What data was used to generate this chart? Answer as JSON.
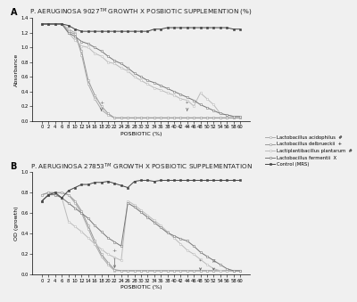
{
  "title_A": "P. AERUGINOSA 9027$^{TM}$ GROWTH X POSBIOTIC SUPPLEMENTION (%)",
  "title_B": "P. AERUGINOSA 27853$^{TM}$ GROWTH X POSBIOTIC SUPPLEMENTATION",
  "xlabel": "POSBIOTIC (%)",
  "ylabel_A": "Absorbance",
  "ylabel_B": "OD (growth)",
  "x_ticks": [
    0,
    2,
    4,
    6,
    8,
    10,
    12,
    14,
    16,
    18,
    20,
    22,
    24,
    26,
    28,
    30,
    32,
    34,
    36,
    38,
    40,
    42,
    44,
    46,
    48,
    50,
    52,
    54,
    56,
    58,
    60
  ],
  "legend_labels": [
    "Lactobacillus acidophilus  #",
    "Lactobacillus delbrueckii  +",
    "Lactiplantibacillus plantarum  #",
    "Lactobacillus fermentii  X",
    "Control (MRS)"
  ],
  "data_A": {
    "acidophilus": [
      1.32,
      1.32,
      1.32,
      1.32,
      1.25,
      1.2,
      0.9,
      0.5,
      0.3,
      0.15,
      0.08,
      0.04,
      0.04,
      0.04,
      0.04,
      0.04,
      0.04,
      0.04,
      0.04,
      0.04,
      0.04,
      0.04,
      0.04,
      0.04,
      0.04,
      0.04,
      0.04,
      0.04,
      0.04,
      0.04,
      0.04
    ],
    "delbrueckii": [
      1.32,
      1.32,
      1.32,
      1.32,
      1.22,
      1.18,
      0.95,
      0.55,
      0.35,
      0.2,
      0.1,
      0.04,
      0.04,
      0.04,
      0.04,
      0.04,
      0.04,
      0.04,
      0.04,
      0.04,
      0.04,
      0.04,
      0.04,
      0.04,
      0.04,
      0.04,
      0.04,
      0.04,
      0.04,
      0.04,
      0.04
    ],
    "plantarum": [
      1.32,
      1.32,
      1.32,
      1.32,
      1.2,
      1.1,
      1.02,
      1.0,
      0.92,
      0.88,
      0.8,
      0.78,
      0.72,
      0.68,
      0.6,
      0.55,
      0.5,
      0.45,
      0.42,
      0.38,
      0.35,
      0.3,
      0.28,
      0.2,
      0.38,
      0.3,
      0.22,
      0.1,
      0.08,
      0.06,
      0.06
    ],
    "fermentii": [
      1.32,
      1.32,
      1.32,
      1.32,
      1.2,
      1.15,
      1.08,
      1.05,
      1.0,
      0.95,
      0.88,
      0.82,
      0.78,
      0.72,
      0.65,
      0.6,
      0.55,
      0.52,
      0.48,
      0.44,
      0.4,
      0.36,
      0.32,
      0.28,
      0.22,
      0.18,
      0.14,
      0.1,
      0.08,
      0.06,
      0.06
    ],
    "control": [
      1.32,
      1.32,
      1.32,
      1.32,
      1.3,
      1.25,
      1.22,
      1.22,
      1.22,
      1.22,
      1.22,
      1.22,
      1.22,
      1.22,
      1.22,
      1.22,
      1.22,
      1.25,
      1.25,
      1.27,
      1.27,
      1.27,
      1.27,
      1.27,
      1.27,
      1.27,
      1.27,
      1.27,
      1.27,
      1.25,
      1.25
    ]
  },
  "data_B": {
    "acidophilus": [
      0.78,
      0.8,
      0.8,
      0.8,
      0.78,
      0.7,
      0.6,
      0.45,
      0.3,
      0.18,
      0.1,
      0.04,
      0.04,
      0.04,
      0.04,
      0.04,
      0.04,
      0.04,
      0.04,
      0.04,
      0.04,
      0.04,
      0.04,
      0.04,
      0.04,
      0.04,
      0.04,
      0.04,
      0.04,
      0.04,
      0.04
    ],
    "delbrueckii": [
      0.78,
      0.8,
      0.8,
      0.8,
      0.78,
      0.72,
      0.62,
      0.48,
      0.33,
      0.2,
      0.12,
      0.05,
      0.04,
      0.04,
      0.04,
      0.04,
      0.04,
      0.04,
      0.04,
      0.04,
      0.04,
      0.04,
      0.04,
      0.04,
      0.04,
      0.04,
      0.04,
      0.04,
      0.04,
      0.04,
      0.04
    ],
    "plantarum": [
      0.72,
      0.78,
      0.78,
      0.75,
      0.52,
      0.47,
      0.42,
      0.36,
      0.3,
      0.25,
      0.2,
      0.17,
      0.14,
      0.72,
      0.68,
      0.63,
      0.58,
      0.53,
      0.48,
      0.42,
      0.36,
      0.3,
      0.24,
      0.2,
      0.15,
      0.1,
      0.06,
      0.04,
      0.04,
      0.04,
      0.04
    ],
    "fermentii": [
      0.72,
      0.78,
      0.78,
      0.75,
      0.7,
      0.65,
      0.6,
      0.55,
      0.48,
      0.42,
      0.36,
      0.32,
      0.28,
      0.7,
      0.66,
      0.61,
      0.56,
      0.51,
      0.46,
      0.41,
      0.38,
      0.35,
      0.33,
      0.28,
      0.22,
      0.18,
      0.14,
      0.1,
      0.06,
      0.04,
      0.04
    ],
    "control": [
      0.72,
      0.78,
      0.8,
      0.75,
      0.82,
      0.85,
      0.88,
      0.88,
      0.9,
      0.9,
      0.91,
      0.89,
      0.87,
      0.85,
      0.91,
      0.92,
      0.92,
      0.91,
      0.92,
      0.92,
      0.92,
      0.92,
      0.92,
      0.92,
      0.92,
      0.92,
      0.92,
      0.92,
      0.92,
      0.92,
      0.92
    ]
  },
  "ylim_A": [
    0.0,
    1.4
  ],
  "ylim_B": [
    0.0,
    1.0
  ],
  "yticks_A": [
    0.0,
    0.2,
    0.4,
    0.6,
    0.8,
    1.0,
    1.2,
    1.4
  ],
  "yticks_B": [
    0.0,
    0.2,
    0.4,
    0.6,
    0.8,
    1.0
  ],
  "colors": [
    "#aaaaaa",
    "#999999",
    "#bbbbbb",
    "#777777",
    "#444444"
  ],
  "line_width": 0.7,
  "marker_size": 1.8,
  "bg_color": "#f0f0f0",
  "font_size_title": 5.2,
  "font_size_axis": 4.5,
  "font_size_tick": 3.8,
  "font_size_legend": 3.8
}
